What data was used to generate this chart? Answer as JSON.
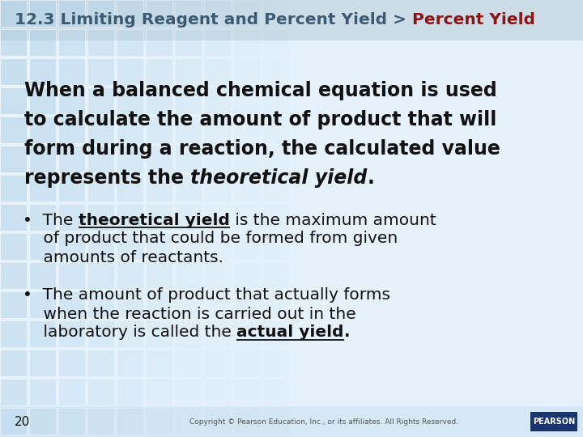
{
  "title_part1": "12.3 Limiting Reagent and Percent Yield > ",
  "title_part2": "Percent Yield",
  "title_color1": "#3d5a73",
  "title_color2": "#8b1515",
  "title_fontsize": 14.5,
  "bg_main": "#e5f2fb",
  "bg_title": "#ccdde8",
  "bg_footer": "#d5e8f5",
  "grid_color": "#aecfe6",
  "text_color": "#111111",
  "footer_color": "#555555",
  "main_fontsize": 17,
  "bullet_fontsize": 14.5,
  "title_part1_color": "#3d5a73",
  "title_part2_color": "#8b1515",
  "main_text_lines": [
    "When a balanced chemical equation is used",
    "to calculate the amount of product that will",
    "form during a reaction, the calculated value",
    "represents the "
  ],
  "main_bold_end": "theoretical yield",
  "main_period": ".",
  "b1_pre": "•  The ",
  "b1_bold": "theoretical yield",
  "b1_rest": " is the maximum amount",
  "b1_cont": [
    "    of product that could be formed from given",
    "    amounts of reactants."
  ],
  "b2_lines": [
    "•  The amount of product that actually forms",
    "    when the reaction is carried out in the"
  ],
  "b2_pre": "    laboratory is called the ",
  "b2_bold": "actual yield",
  "b2_end": ".",
  "footer_num": "20",
  "footer_text": "Copyright © Pearson Education, Inc., or its affiliates. All Rights Reserved.",
  "pearson_bg": "#1a3570"
}
